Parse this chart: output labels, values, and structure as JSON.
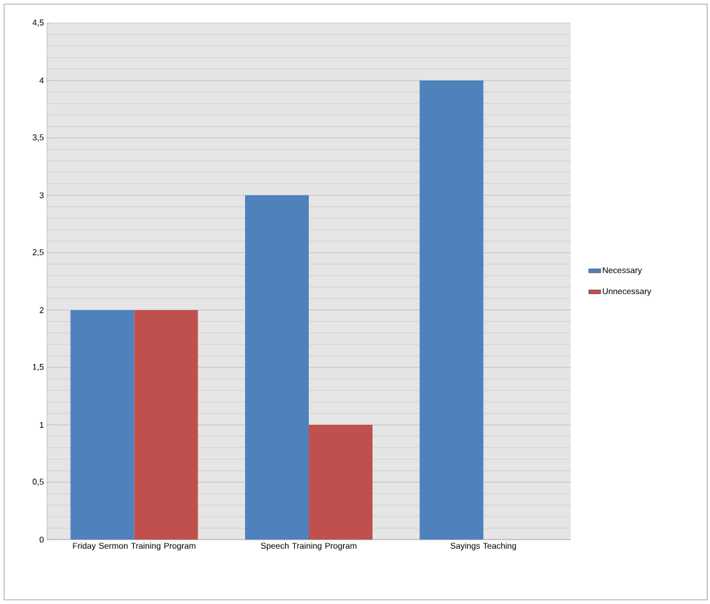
{
  "chart_data": {
    "type": "bar",
    "categories": [
      "Friday Sermon Training Program",
      "Speech Training Program",
      "Sayings Teaching"
    ],
    "series": [
      {
        "name": "Necessary",
        "color": "#4f81bd",
        "values": [
          2,
          3,
          4
        ]
      },
      {
        "name": "Unnecessary",
        "color": "#c0504d",
        "values": [
          2,
          1,
          0
        ]
      }
    ],
    "ylim": [
      0,
      4.5
    ],
    "yticks": [
      0,
      {
        "value": 0.5,
        "label": "0,5"
      },
      1,
      {
        "value": 1.5,
        "label": "1,5"
      },
      2,
      {
        "value": 2.5,
        "label": "2,5"
      },
      3,
      {
        "value": 3.5,
        "label": "3,5"
      },
      4,
      {
        "value": 4.5,
        "label": "4,5"
      }
    ],
    "grid": "y",
    "legend": "right"
  }
}
